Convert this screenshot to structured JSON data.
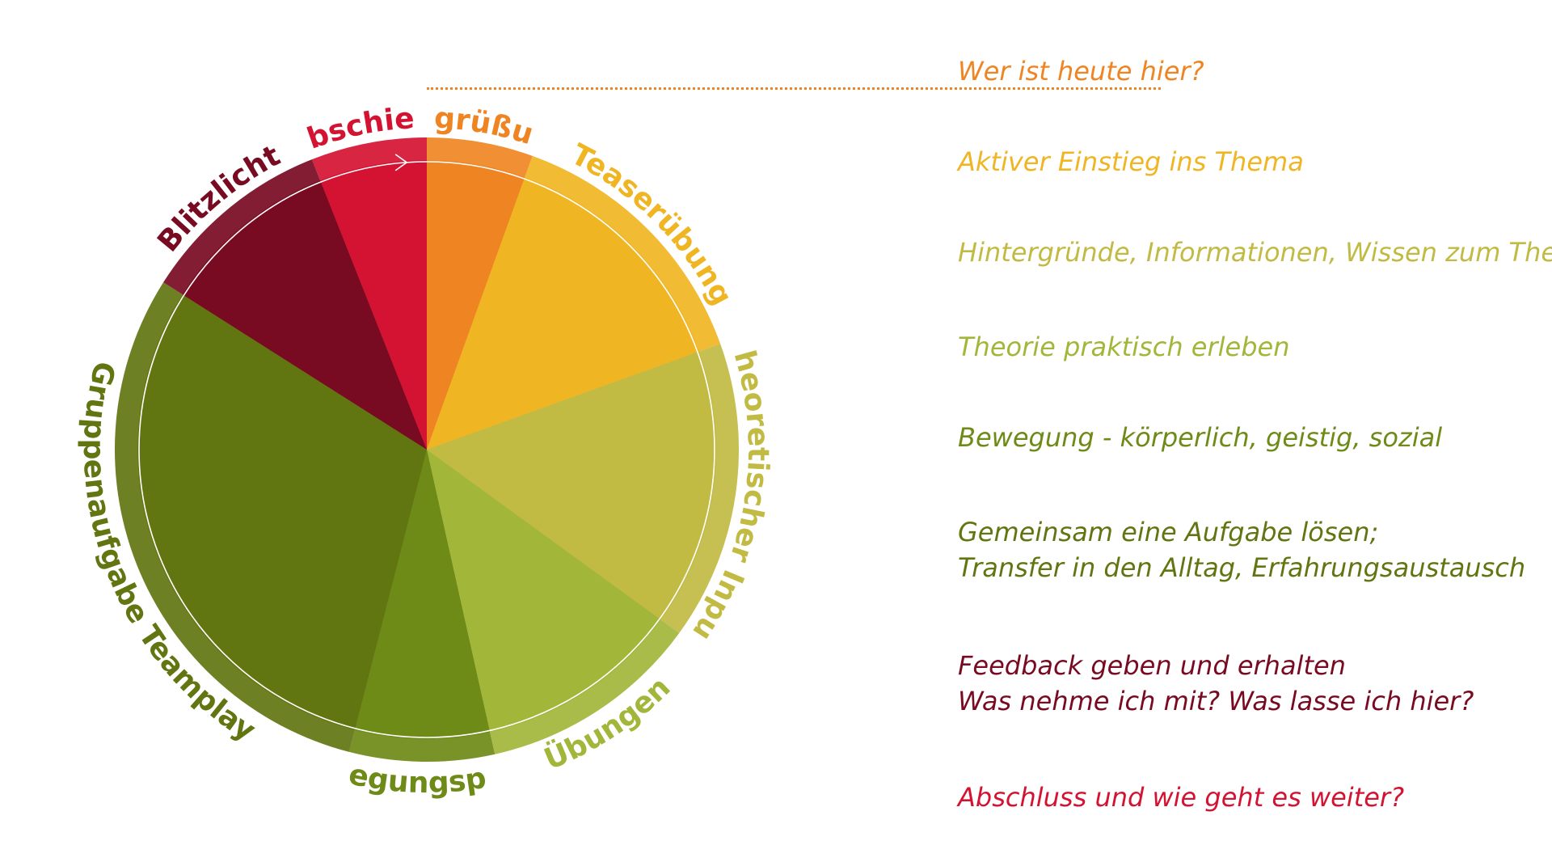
{
  "center_label": "",
  "segments": [
    {
      "name": "Begrüßung",
      "share": 0.055,
      "color": "#EF8522",
      "label_color": "#EF8522"
    },
    {
      "name": "Teaserübung",
      "share": 0.14,
      "color": "#F0B523",
      "label_color": "#F0B523"
    },
    {
      "name": "Theoretischer Input",
      "share": 0.155,
      "color": "#C1BA43",
      "label_color": "#C1BA43"
    },
    {
      "name": "Übungen",
      "share": 0.115,
      "color": "#A2B63A",
      "label_color": "#A2B63A"
    },
    {
      "name": "Bewegungspause",
      "share": 0.075,
      "color": "#6E8A17",
      "label_color": "#6E8A17"
    },
    {
      "name": "Gruppenaufgabe Teamplay",
      "share": 0.3,
      "color": "#617510",
      "label_color": "#617510"
    },
    {
      "name": "Blitzlicht",
      "share": 0.1,
      "color": "#780A22",
      "label_color": "#780A22"
    },
    {
      "name": "Verabschiedung",
      "share": 0.06,
      "color": "#D41232",
      "label_color": "#D41232"
    }
  ],
  "descriptions": [
    {
      "lines": [
        "Wer ist heute hier?"
      ],
      "color": "#EF8522"
    },
    {
      "lines": [
        "Aktiver Einstieg ins Thema"
      ],
      "color": "#F0B523"
    },
    {
      "lines": [
        "Hintergründe, Informationen, Wissen zum Thema"
      ],
      "color": "#C1BA43"
    },
    {
      "lines": [
        "Theorie praktisch erleben"
      ],
      "color": "#A2B63A"
    },
    {
      "lines": [
        "Bewegung - körperlich, geistig, sozial"
      ],
      "color": "#6E8A17"
    },
    {
      "lines": [
        "Gemeinsam eine Aufgabe lösen;",
        "Transfer in den Alltag, Erfahrungsaustausch"
      ],
      "color": "#617510"
    },
    {
      "lines": [
        "Feedback geben und erhalten",
        "Was nehme ich mit? Was lasse ich hier?"
      ],
      "color": "#780A22"
    },
    {
      "lines": [
        "Abschluss und wie geht es weiter?"
      ],
      "color": "#D41232"
    }
  ]
}
